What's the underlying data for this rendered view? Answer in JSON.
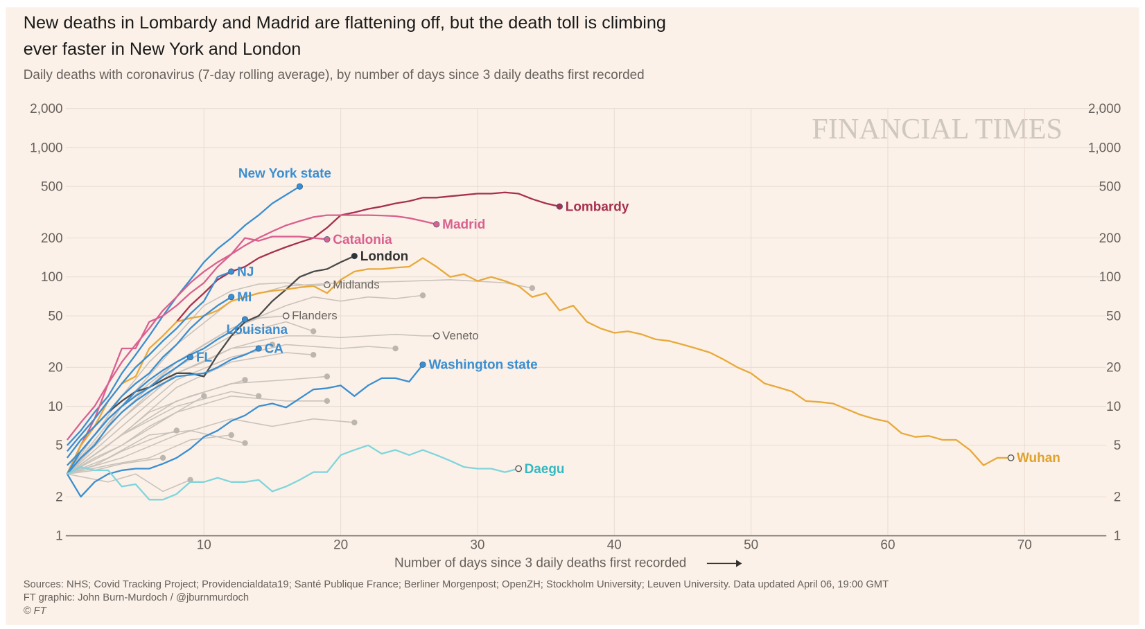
{
  "title": "New deaths in Lombardy and Madrid are flattening off, but the death toll is climbing ever faster in New York and London",
  "subtitle": "Daily deaths with coronavirus (7-day rolling average), by number of days since 3 daily deaths first recorded",
  "watermark": "FINANCIAL TIMES",
  "footer": {
    "sources": "Sources: NHS; Covid Tracking Project; Providencialdata19; Santé Publique France; Berliner Morgenpost; OpenZH; Stockholm University; Leuven University. Data updated April 06, 19:00 GMT",
    "credit": "FT graphic: John Burn-Murdoch / @jburnmurdoch",
    "copyright": "© FT"
  },
  "colors": {
    "background": "#fbf1e8",
    "grid": "#e8ddd3",
    "axis": "#66605c",
    "blue": "#3b8ed0",
    "pink": "#d9608f",
    "lombardy": "#a7304f",
    "london": "#4a4a4a",
    "wuhan": "#e8a93a",
    "daegu": "#7fd5dc",
    "grey": "#c9c3bc"
  },
  "chart_data": {
    "type": "line",
    "title": "New deaths in Lombardy and Madrid are flattening off, but the death toll is climbing ever faster in New York and London",
    "xlabel": "Number of days since 3 daily deaths first recorded",
    "ylabel": "",
    "xlim": [
      0,
      75
    ],
    "ylim": [
      1,
      2000
    ],
    "yscale": "log",
    "grid": true,
    "xticks": [
      "10",
      "20",
      "30",
      "40",
      "50",
      "60",
      "70"
    ],
    "xtick_values": [
      10,
      20,
      30,
      40,
      50,
      60,
      70
    ],
    "yticks": [
      "1",
      "2",
      "5",
      "10",
      "20",
      "50",
      "100",
      "200",
      "500",
      "1,000",
      "2,000"
    ],
    "ytick_values": [
      1,
      2,
      5,
      10,
      20,
      50,
      100,
      200,
      500,
      1000,
      2000
    ],
    "series": [
      {
        "name": "New York state",
        "color": "#3b8ed0",
        "label_color": "#3b8ed0",
        "x": [
          0,
          1,
          2,
          3,
          4,
          5,
          6,
          7,
          8,
          9,
          10,
          11,
          12,
          13,
          14,
          15,
          16,
          17
        ],
        "y": [
          5,
          6.5,
          9,
          12,
          18,
          25,
          35,
          50,
          70,
          95,
          130,
          165,
          200,
          250,
          300,
          370,
          430,
          500
        ]
      },
      {
        "name": "Lombardy",
        "color": "#a7304f",
        "label_color": "#a7304f",
        "x": [
          8,
          9,
          10,
          11,
          12,
          13,
          14,
          15,
          16,
          17,
          18,
          19,
          20,
          21,
          22,
          23,
          24,
          25,
          26,
          27,
          28,
          29,
          30,
          31,
          32,
          33,
          34,
          35,
          36
        ],
        "y": [
          45,
          60,
          75,
          95,
          110,
          120,
          140,
          155,
          170,
          185,
          200,
          240,
          300,
          315,
          335,
          350,
          370,
          385,
          410,
          410,
          420,
          430,
          440,
          440,
          450,
          440,
          400,
          370,
          350
        ]
      },
      {
        "name": "Madrid",
        "color": "#d9608f",
        "label_color": "#d9608f",
        "x": [
          0,
          1,
          2,
          3,
          4,
          5,
          6,
          7,
          8,
          9,
          10,
          11,
          12,
          13,
          14,
          15,
          16,
          17,
          18,
          19,
          20,
          21,
          22,
          23,
          24,
          25,
          26,
          27
        ],
        "y": [
          5.5,
          7.5,
          10,
          15,
          22,
          30,
          40,
          55,
          70,
          90,
          110,
          130,
          150,
          175,
          200,
          225,
          250,
          270,
          290,
          300,
          300,
          300,
          300,
          298,
          295,
          285,
          270,
          255
        ]
      },
      {
        "name": "Catalonia",
        "color": "#d9608f",
        "label_color": "#d9608f",
        "x": [
          0,
          1,
          2,
          3,
          4,
          5,
          6,
          7,
          8,
          9,
          10,
          11,
          12,
          13,
          14,
          15,
          16,
          17,
          18,
          19
        ],
        "y": [
          3,
          5,
          8,
          15,
          28,
          28,
          45,
          50,
          60,
          75,
          90,
          120,
          150,
          200,
          190,
          205,
          205,
          205,
          200,
          195
        ]
      },
      {
        "name": "London",
        "color": "#4a4a4a",
        "label_color": "#333333",
        "x": [
          0,
          1,
          2,
          3,
          4,
          5,
          6,
          7,
          8,
          9,
          10,
          11,
          12,
          13,
          14,
          15,
          16,
          17,
          18,
          19,
          20,
          21
        ],
        "y": [
          3,
          5,
          7,
          9,
          11,
          13,
          14,
          16,
          18,
          18,
          17,
          25,
          35,
          45,
          50,
          65,
          80,
          100,
          110,
          115,
          130,
          145
        ]
      },
      {
        "name": "Wuhan",
        "color": "#e8a93a",
        "label_color": "#e0a22c",
        "x": [
          0,
          1,
          2,
          3,
          4,
          5,
          6,
          7,
          8,
          9,
          10,
          11,
          12,
          13,
          14,
          15,
          16,
          17,
          18,
          19,
          20,
          21,
          22,
          23,
          24,
          25,
          26,
          27,
          28,
          29,
          30,
          31,
          32,
          33,
          34,
          35,
          36,
          37,
          38,
          39,
          40,
          41,
          42,
          43,
          44,
          45,
          46,
          47,
          48,
          49,
          50,
          51,
          52,
          53,
          54,
          55,
          56,
          57,
          58,
          59,
          60,
          61,
          62,
          63,
          64,
          65,
          66,
          67,
          68,
          69
        ],
        "y": [
          3,
          5,
          7,
          11,
          15,
          17,
          28,
          35,
          45,
          48,
          50,
          55,
          65,
          70,
          75,
          78,
          80,
          83,
          85,
          75,
          95,
          110,
          115,
          115,
          118,
          120,
          140,
          120,
          100,
          105,
          93,
          100,
          93,
          85,
          70,
          75,
          55,
          60,
          45,
          40,
          37,
          38,
          36,
          33,
          32,
          30,
          28,
          26,
          23,
          20,
          18,
          15,
          14,
          13,
          11,
          10.8,
          10.5,
          9.5,
          8.6,
          8,
          7.6,
          6.2,
          5.8,
          5.9,
          5.5,
          5.5,
          4.6,
          3.5,
          4,
          4
        ]
      },
      {
        "name": "NJ",
        "color": "#3b8ed0",
        "label_color": "#3b8ed0",
        "x": [
          0,
          1,
          2,
          3,
          4,
          5,
          6,
          7,
          8,
          9,
          10,
          11,
          12
        ],
        "y": [
          4.5,
          6,
          8,
          11,
          15,
          20,
          25,
          32,
          40,
          52,
          65,
          100,
          110
        ]
      },
      {
        "name": "MI",
        "color": "#3b8ed0",
        "label_color": "#3b8ed0",
        "x": [
          0,
          1,
          2,
          3,
          4,
          5,
          6,
          7,
          8,
          9,
          10,
          11,
          12
        ],
        "y": [
          4,
          5.5,
          7,
          9,
          12,
          15,
          18,
          24,
          30,
          40,
          50,
          60,
          70
        ]
      },
      {
        "name": "Louisiana",
        "color": "#3b8ed0",
        "label_color": "#3b8ed0",
        "x": [
          0,
          1,
          2,
          3,
          4,
          5,
          6,
          7,
          8,
          9,
          10,
          11,
          12,
          13
        ],
        "y": [
          3,
          4.5,
          6,
          8,
          10,
          13,
          16,
          19,
          22,
          25,
          28,
          33,
          38,
          47
        ]
      },
      {
        "name": "FL",
        "color": "#3b8ed0",
        "label_color": "#3b8ed0",
        "x": [
          0,
          1,
          2,
          3,
          4,
          5,
          6,
          7,
          8,
          9
        ],
        "y": [
          3.5,
          4.5,
          6,
          8,
          10,
          12,
          14,
          17,
          20,
          24
        ]
      },
      {
        "name": "CA",
        "color": "#3b8ed0",
        "label_color": "#3b8ed0",
        "x": [
          0,
          1,
          2,
          3,
          4,
          5,
          6,
          7,
          8,
          9,
          10,
          11,
          12,
          13,
          14
        ],
        "y": [
          3,
          4,
          5,
          7,
          9,
          11,
          13,
          15,
          17,
          17.5,
          18,
          20,
          23,
          25,
          28
        ]
      },
      {
        "name": "Washington state",
        "color": "#3b8ed0",
        "label_color": "#3b8ed0",
        "x": [
          0,
          1,
          2,
          3,
          4,
          5,
          6,
          7,
          8,
          9,
          10,
          11,
          12,
          13,
          14,
          15,
          16,
          17,
          18,
          19,
          20,
          21,
          22,
          23,
          24,
          25,
          26
        ],
        "y": [
          3,
          2,
          2.6,
          3,
          3.2,
          3.3,
          3.3,
          3.6,
          4,
          4.7,
          5.8,
          6.5,
          7.7,
          8.5,
          10,
          10.5,
          9.8,
          11.5,
          13.5,
          13.8,
          14.5,
          12,
          14.5,
          16.5,
          16.5,
          15.5,
          21
        ]
      },
      {
        "name": "Daegu",
        "color": "#7fd5dc",
        "label_color": "#37b8c1",
        "x": [
          0,
          1,
          2,
          3,
          4,
          5,
          6,
          7,
          8,
          9,
          10,
          11,
          12,
          13,
          14,
          15,
          16,
          17,
          18,
          19,
          20,
          21,
          22,
          23,
          24,
          25,
          26,
          27,
          28,
          29,
          30,
          31,
          32,
          33
        ],
        "y": [
          3,
          3.4,
          3.2,
          3.2,
          2.4,
          2.5,
          1.9,
          1.9,
          2.1,
          2.6,
          2.6,
          2.8,
          2.6,
          2.6,
          2.7,
          2.2,
          2.4,
          2.7,
          3.1,
          3.1,
          4.2,
          4.6,
          5,
          4.3,
          4.6,
          4.2,
          4.6,
          4.2,
          3.8,
          3.4,
          3.3,
          3.3,
          3.1,
          3.3
        ]
      },
      {
        "name": "Midlands",
        "color": "#c9c3bc",
        "label_color": "#6b6661",
        "x": [
          0,
          2,
          4,
          6,
          8,
          10,
          12,
          14,
          16,
          18,
          19
        ],
        "y": [
          3,
          6,
          12,
          22,
          35,
          60,
          78,
          88,
          90,
          85,
          87
        ]
      },
      {
        "name": "Flanders",
        "color": "#c9c3bc",
        "label_color": "#6b6661",
        "x": [
          0,
          2,
          4,
          6,
          8,
          10,
          12,
          14,
          16
        ],
        "y": [
          3,
          5,
          10,
          15,
          22,
          30,
          40,
          48,
          50
        ]
      },
      {
        "name": "Veneto",
        "color": "#c9c3bc",
        "label_color": "#6b6661",
        "x": [
          0,
          2,
          4,
          6,
          8,
          10,
          12,
          14,
          16,
          18,
          20,
          22,
          24,
          26,
          27
        ],
        "y": [
          3,
          5,
          8,
          12,
          18,
          22,
          28,
          32,
          35,
          35,
          34,
          35,
          36,
          35,
          35
        ]
      },
      {
        "color": "#c9c3bc",
        "x": [
          0,
          4,
          8,
          12,
          16,
          20,
          24,
          28,
          32,
          34
        ],
        "y": [
          3,
          10,
          30,
          65,
          85,
          90,
          92,
          95,
          90,
          82
        ]
      },
      {
        "color": "#c9c3bc",
        "x": [
          0,
          4,
          8,
          12,
          16,
          18,
          20,
          22,
          24,
          26
        ],
        "y": [
          3,
          9,
          22,
          40,
          60,
          70,
          65,
          70,
          68,
          72
        ]
      },
      {
        "color": "#c9c3bc",
        "x": [
          0,
          4,
          8,
          12,
          16,
          18
        ],
        "y": [
          3,
          8,
          20,
          35,
          45,
          38
        ]
      },
      {
        "color": "#c9c3bc",
        "x": [
          0,
          4,
          8,
          12,
          16,
          20,
          22,
          24
        ],
        "y": [
          3,
          7,
          16,
          24,
          30,
          28,
          29,
          28
        ]
      },
      {
        "color": "#c9c3bc",
        "x": [
          0,
          4,
          8,
          12,
          16,
          18
        ],
        "y": [
          3,
          6,
          14,
          22,
          26,
          25
        ]
      },
      {
        "color": "#c9c3bc",
        "x": [
          0,
          4,
          8,
          12,
          15
        ],
        "y": [
          3,
          8,
          18,
          28,
          30
        ]
      },
      {
        "color": "#c9c3bc",
        "x": [
          0,
          4,
          8,
          12,
          16,
          19
        ],
        "y": [
          3,
          6,
          11,
          15,
          16,
          17
        ]
      },
      {
        "color": "#c9c3bc",
        "x": [
          0,
          4,
          8,
          12,
          16,
          19
        ],
        "y": [
          3,
          5,
          9,
          12,
          11,
          11
        ]
      },
      {
        "color": "#c9c3bc",
        "x": [
          0,
          4,
          8,
          12,
          14
        ],
        "y": [
          3,
          6,
          10,
          13,
          12
        ]
      },
      {
        "color": "#c9c3bc",
        "x": [
          0,
          4,
          8,
          12,
          15,
          18,
          21
        ],
        "y": [
          3,
          4,
          6,
          8,
          7,
          8,
          7.5
        ]
      },
      {
        "color": "#c9c3bc",
        "x": [
          0,
          3,
          6,
          9,
          13
        ],
        "y": [
          3,
          4,
          6,
          6.5,
          5.2
        ]
      },
      {
        "color": "#c9c3bc",
        "x": [
          0,
          3,
          6,
          9,
          12
        ],
        "y": [
          3,
          3.5,
          4,
          5.5,
          6
        ]
      },
      {
        "color": "#c9c3bc",
        "x": [
          0,
          3,
          5,
          7,
          9
        ],
        "y": [
          3,
          2.6,
          3,
          2.2,
          2.7
        ]
      },
      {
        "color": "#c9c3bc",
        "x": [
          0,
          2,
          4,
          6,
          8,
          10
        ],
        "y": [
          3,
          4,
          5,
          7,
          9,
          12
        ]
      },
      {
        "color": "#c9c3bc",
        "x": [
          0,
          2,
          4,
          6,
          8
        ],
        "y": [
          3,
          3.5,
          4.5,
          5.5,
          6.5
        ]
      },
      {
        "color": "#c9c3bc",
        "x": [
          0,
          2,
          4,
          7
        ],
        "y": [
          3,
          3.2,
          3.6,
          4
        ]
      },
      {
        "color": "#c9c3bc",
        "x": [
          0,
          3,
          6,
          9,
          13
        ],
        "y": [
          3,
          5,
          9,
          12,
          16
        ]
      }
    ]
  }
}
